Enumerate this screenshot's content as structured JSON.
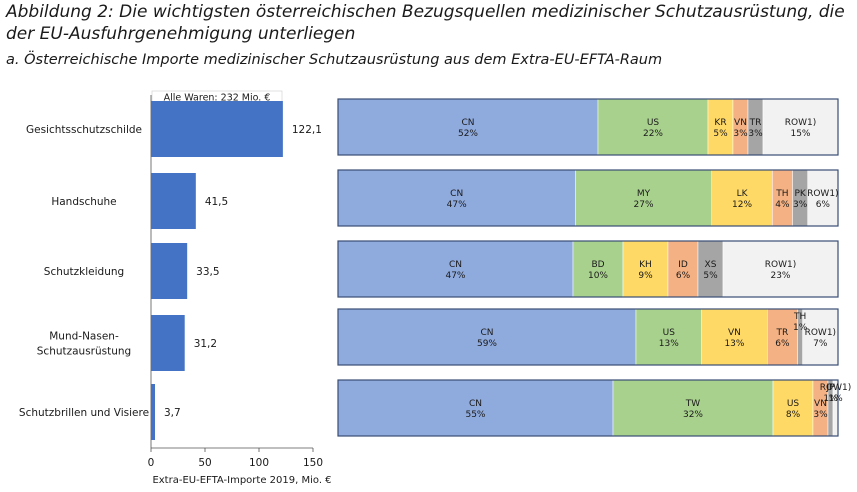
{
  "title": "Abbildung 2: Die wichtigsten österreichischen Bezugsquellen medizinischer Schutzausrüstung, die der EU-Ausfuhrgenehmigung unterliegen",
  "subtitle": "a.  Österreichische Importe medizinischer Schutzausrüstung aus dem Extra-EU-EFTA-Raum",
  "colors": {
    "bar": "#4472c4",
    "CN": "#8faadc",
    "green": "#a9d18e",
    "yellow": "#ffd966",
    "orange": "#f4b183",
    "gray": "#a5a5a5",
    "row": "#f2f2f2"
  },
  "chart_data": [
    {
      "type": "bar",
      "orientation": "horizontal",
      "categories": [
        "Gesichtsschutzschilde",
        "Handschuhe",
        "Schutzkleidung",
        "Mund-Nasen-Schutzausrüstung",
        "Schutzbrillen und Visiere"
      ],
      "category_lines": [
        [
          "Gesichtsschutzschilde"
        ],
        [
          "Handschuhe"
        ],
        [
          "Schutzkleidung"
        ],
        [
          "Mund-Nasen-",
          "Schutzausrüstung"
        ],
        [
          "Schutzbrillen und Visiere"
        ]
      ],
      "values": [
        122.1,
        41.5,
        33.5,
        31.2,
        3.7
      ],
      "value_labels": [
        "122,1",
        "41,5",
        "33,5",
        "31,2",
        "3,7"
      ],
      "annotation": "Alle Waren: 232 Mio. €",
      "xlabel": "Extra-EU-EFTA-Importe 2019, Mio. €",
      "xlim": [
        0,
        150
      ],
      "xticks": [
        0,
        50,
        100,
        150
      ]
    },
    {
      "type": "bar",
      "stacked": true,
      "normalized": true,
      "rows": [
        {
          "category": "Gesichtsschutzschilde",
          "segments": [
            {
              "label": "CN",
              "value": 52,
              "color": "CN"
            },
            {
              "label": "US",
              "value": 22,
              "color": "green"
            },
            {
              "label": "KR",
              "value": 5,
              "color": "yellow"
            },
            {
              "label": "VN",
              "value": 3,
              "color": "orange"
            },
            {
              "label": "TR",
              "value": 3,
              "color": "gray"
            },
            {
              "label": "ROW1)",
              "value": 15,
              "color": "row"
            }
          ]
        },
        {
          "category": "Handschuhe",
          "segments": [
            {
              "label": "CN",
              "value": 47,
              "color": "CN"
            },
            {
              "label": "MY",
              "value": 27,
              "color": "green"
            },
            {
              "label": "LK",
              "value": 12,
              "color": "yellow"
            },
            {
              "label": "TH",
              "value": 4,
              "color": "orange"
            },
            {
              "label": "PK",
              "value": 3,
              "color": "gray"
            },
            {
              "label": "ROW1)",
              "value": 6,
              "color": "row"
            }
          ]
        },
        {
          "category": "Schutzkleidung",
          "segments": [
            {
              "label": "CN",
              "value": 47,
              "color": "CN"
            },
            {
              "label": "BD",
              "value": 10,
              "color": "green"
            },
            {
              "label": "KH",
              "value": 9,
              "color": "yellow"
            },
            {
              "label": "ID",
              "value": 6,
              "color": "orange"
            },
            {
              "label": "XS",
              "value": 5,
              "color": "gray"
            },
            {
              "label": "ROW1)",
              "value": 23,
              "color": "row"
            }
          ]
        },
        {
          "category": "Mund-Nasen-Schutzausrüstung",
          "segments": [
            {
              "label": "CN",
              "value": 59,
              "color": "CN"
            },
            {
              "label": "US",
              "value": 13,
              "color": "green"
            },
            {
              "label": "VN",
              "value": 13,
              "color": "yellow"
            },
            {
              "label": "TR",
              "value": 6,
              "color": "orange"
            },
            {
              "label": "TH",
              "value": 1,
              "color": "gray"
            },
            {
              "label": "ROW1)",
              "value": 7,
              "color": "row"
            }
          ]
        },
        {
          "category": "Schutzbrillen und Visiere",
          "segments": [
            {
              "label": "CN",
              "value": 55,
              "color": "CN"
            },
            {
              "label": "TW",
              "value": 32,
              "color": "green"
            },
            {
              "label": "US",
              "value": 8,
              "color": "yellow"
            },
            {
              "label": "VN",
              "value": 3,
              "color": "orange"
            },
            {
              "label": "JP",
              "value": 1,
              "color": "gray"
            },
            {
              "label": "ROW1)",
              "value": 1,
              "color": "row"
            }
          ]
        }
      ]
    }
  ]
}
